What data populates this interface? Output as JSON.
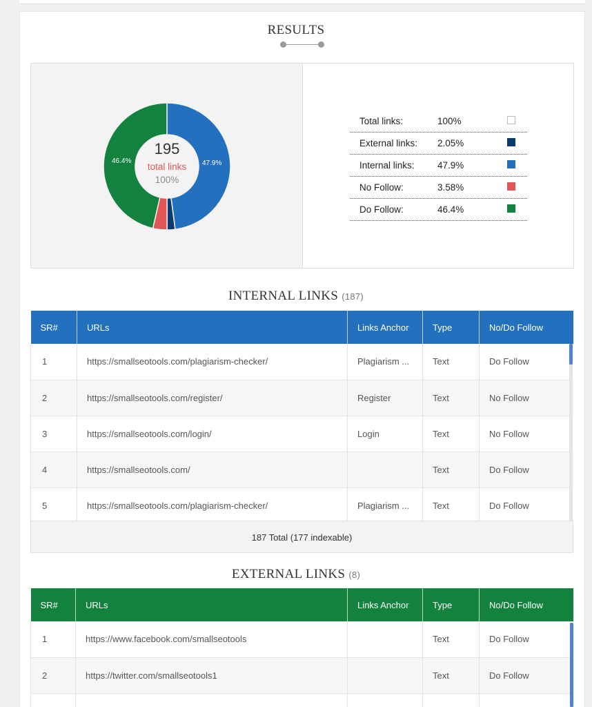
{
  "results": {
    "title": "RESULTS",
    "total_count": "195",
    "total_label": "total links",
    "total_percent": "100%",
    "slice_labels": {
      "external": "",
      "internal": "47.9%",
      "nofollow": "",
      "dofollow": "46.4%"
    },
    "legend": [
      {
        "label": "Total links:",
        "value": "100%",
        "color": "#ffffff"
      },
      {
        "label": "External links:",
        "value": "2.05%",
        "color": "#0b3a6e"
      },
      {
        "label": "Internal links:",
        "value": "47.9%",
        "color": "#2370bf"
      },
      {
        "label": "No Follow:",
        "value": "3.58%",
        "color": "#e05556"
      },
      {
        "label": "Do Follow:",
        "value": "46.4%",
        "color": "#13823f"
      }
    ],
    "chart_data": {
      "type": "pie",
      "categories": [
        "Internal links",
        "External links",
        "No Follow",
        "Do Follow"
      ],
      "values": [
        47.9,
        2.05,
        3.58,
        46.4
      ],
      "colors": [
        "#2370bf",
        "#0b3a6e",
        "#e05556",
        "#13823f"
      ]
    }
  },
  "internal": {
    "title": "INTERNAL LINKS",
    "count": "(187)",
    "headers": [
      "SR#",
      "URLs",
      "Links Anchor",
      "Type",
      "No/Do Follow"
    ],
    "rows": [
      {
        "sr": "1",
        "url": "https://smallseotools.com/plagiarism-checker/",
        "anchor": "Plagiarism ...",
        "type": "Text",
        "follow": "Do Follow"
      },
      {
        "sr": "2",
        "url": "https://smallseotools.com/register/",
        "anchor": "Register",
        "type": "Text",
        "follow": "No Follow"
      },
      {
        "sr": "3",
        "url": "https://smallseotools.com/login/",
        "anchor": "Login",
        "type": "Text",
        "follow": "No Follow"
      },
      {
        "sr": "4",
        "url": "https://smallseotools.com/",
        "anchor": "",
        "type": "Text",
        "follow": "Do Follow"
      },
      {
        "sr": "5",
        "url": "https://smallseotools.com/plagiarism-checker/",
        "anchor": "Plagiarism ...",
        "type": "Text",
        "follow": "Do Follow"
      }
    ],
    "total_text": "187 Total (177 indexable)"
  },
  "external": {
    "title": "EXTERNAL LINKS",
    "count": "(8)",
    "headers": [
      "SR#",
      "URLs",
      "Links Anchor",
      "Type",
      "No/Do Follow"
    ],
    "rows": [
      {
        "sr": "1",
        "url": "https://www.facebook.com/smallseotools",
        "anchor": "",
        "type": "Text",
        "follow": "Do Follow"
      },
      {
        "sr": "2",
        "url": "https://twitter.com/smallseotools1",
        "anchor": "",
        "type": "Text",
        "follow": "Do Follow"
      },
      {
        "sr": "",
        "url": "",
        "anchor": "",
        "type": "",
        "follow": ""
      }
    ]
  },
  "colors": {
    "internal_header": "#2370bf",
    "external_header": "#13823f",
    "do_follow": "#1d8a3f",
    "no_follow": "#e04b4b"
  }
}
